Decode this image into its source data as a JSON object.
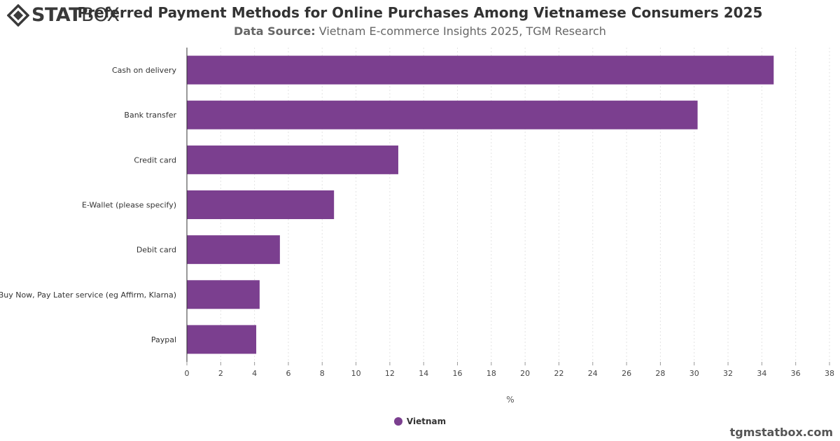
{
  "logo": {
    "bold_part": "STAT",
    "light_part": "BOX"
  },
  "header": {
    "title": "Preferred Payment Methods for Online Purchases Among Vietnamese Consumers 2025",
    "source_label": "Data Source:",
    "source_text": " Vietnam E-commerce Insights 2025, TGM Research"
  },
  "footer": {
    "watermark": "tgmstatbox.com"
  },
  "colors": {
    "bar": "#7b3f8f",
    "logo_icon": "#3a3a3a"
  },
  "chart_data": {
    "type": "bar",
    "orientation": "horizontal",
    "categories": [
      "Cash on delivery",
      "Bank transfer",
      "Credit card",
      "E-Wallet (please specify)",
      "Debit card",
      "Buy Now, Pay Later service (eg Affirm, Klarna)",
      "Paypal"
    ],
    "series": [
      {
        "name": "Vietnam",
        "values": [
          34.7,
          30.2,
          12.5,
          8.7,
          5.5,
          4.3,
          4.1
        ]
      }
    ],
    "xlabel": "%",
    "xlim": [
      0,
      38
    ],
    "xticks": [
      0,
      2,
      4,
      6,
      8,
      10,
      12,
      14,
      16,
      18,
      20,
      22,
      24,
      26,
      28,
      30,
      32,
      34,
      36,
      38
    ],
    "grid": true,
    "legend_position": "bottom-center"
  }
}
